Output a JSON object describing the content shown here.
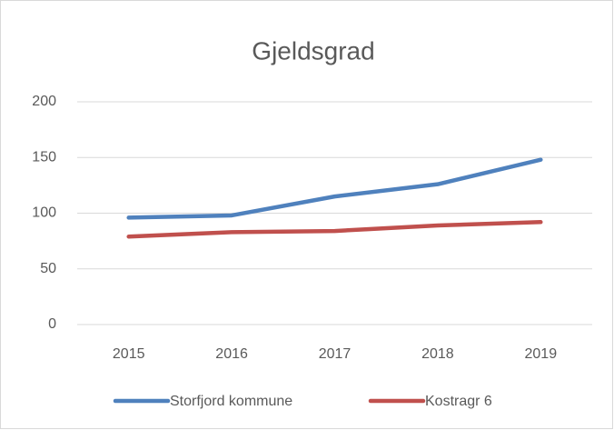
{
  "chart_data": {
    "type": "line",
    "title": "Gjeldsgrad",
    "categories": [
      "2015",
      "2016",
      "2017",
      "2018",
      "2019"
    ],
    "series": [
      {
        "name": "Storfjord kommune",
        "color": "#4f81bd",
        "values": [
          96,
          98,
          115,
          126,
          148
        ]
      },
      {
        "name": "Kostragr 6",
        "color": "#c0504d",
        "values": [
          79,
          83,
          84,
          89,
          92
        ]
      }
    ],
    "ylim": [
      0,
      200
    ],
    "yticks": [
      0,
      50,
      100,
      150,
      200
    ],
    "grid": true,
    "legend": "bottom"
  }
}
